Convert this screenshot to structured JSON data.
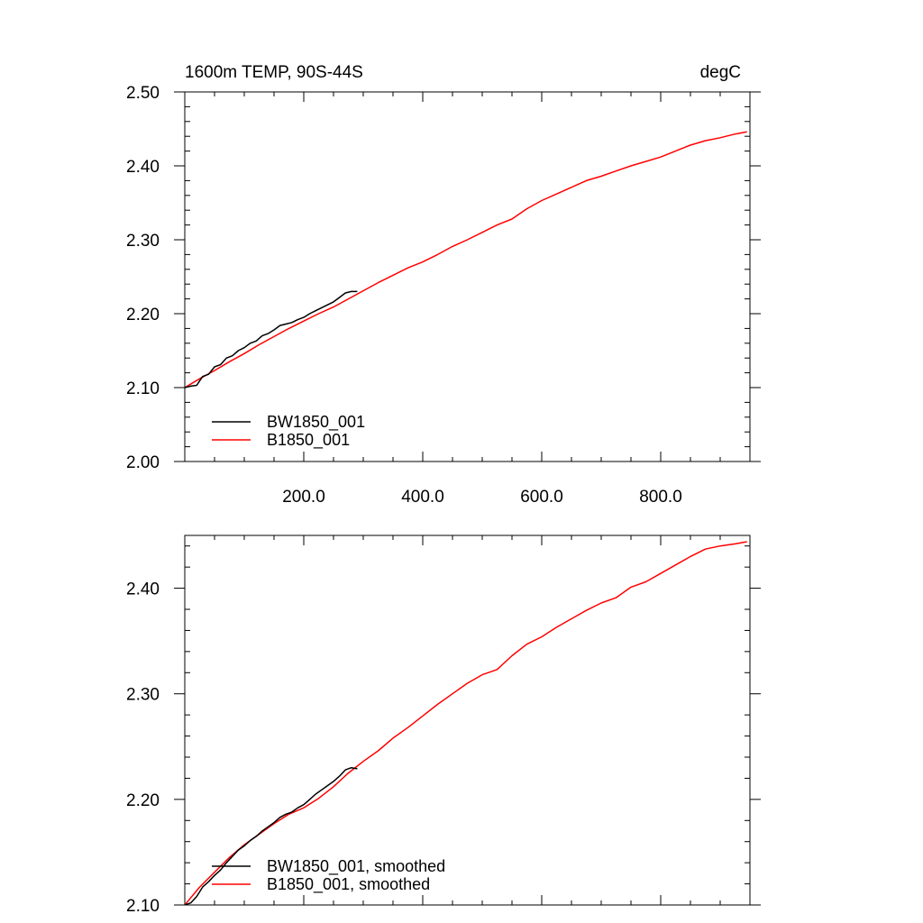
{
  "chart_data": [
    {
      "type": "line",
      "title": "1600m TEMP, 90S-44S",
      "units": "degC",
      "xlim": [
        0,
        950
      ],
      "ylim": [
        2.0,
        2.5
      ],
      "x_ticks": [
        200,
        400,
        600,
        800
      ],
      "x_tick_labels": [
        "200.0",
        "400.0",
        "600.0",
        "800.0"
      ],
      "y_ticks": [
        2.0,
        2.1,
        2.2,
        2.3,
        2.4,
        2.5
      ],
      "y_tick_labels": [
        "2.00",
        "2.10",
        "2.20",
        "2.30",
        "2.40",
        "2.50"
      ],
      "legend_location": "lower-left",
      "grid": false,
      "series": [
        {
          "name": "BW1850_001",
          "color": "#000000",
          "x": [
            0,
            10,
            20,
            30,
            40,
            50,
            60,
            70,
            80,
            90,
            100,
            110,
            120,
            130,
            140,
            150,
            160,
            170,
            180,
            190,
            200,
            210,
            220,
            230,
            240,
            250,
            260,
            270,
            280,
            290
          ],
          "y": [
            2.1,
            2.102,
            2.103,
            2.115,
            2.118,
            2.128,
            2.131,
            2.14,
            2.143,
            2.15,
            2.154,
            2.16,
            2.163,
            2.17,
            2.173,
            2.178,
            2.184,
            2.186,
            2.188,
            2.192,
            2.195,
            2.2,
            2.204,
            2.208,
            2.212,
            2.216,
            2.222,
            2.228,
            2.23,
            2.23
          ]
        },
        {
          "name": "B1850_001",
          "color": "#ff0000",
          "x": [
            0,
            25,
            50,
            75,
            100,
            125,
            150,
            175,
            200,
            225,
            250,
            275,
            300,
            325,
            350,
            375,
            400,
            425,
            450,
            475,
            500,
            525,
            550,
            575,
            600,
            625,
            650,
            675,
            700,
            725,
            750,
            775,
            800,
            825,
            850,
            875,
            900,
            925,
            945
          ],
          "y": [
            2.1,
            2.112,
            2.123,
            2.135,
            2.146,
            2.158,
            2.169,
            2.18,
            2.19,
            2.2,
            2.209,
            2.22,
            2.231,
            2.242,
            2.252,
            2.262,
            2.27,
            2.28,
            2.291,
            2.3,
            2.31,
            2.32,
            2.328,
            2.342,
            2.353,
            2.362,
            2.371,
            2.38,
            2.386,
            2.393,
            2.4,
            2.406,
            2.412,
            2.42,
            2.428,
            2.434,
            2.438,
            2.443,
            2.446
          ]
        }
      ]
    },
    {
      "type": "line",
      "xlim": [
        0,
        950
      ],
      "ylim": [
        2.1,
        2.45
      ],
      "x_ticks": [
        200,
        400,
        600,
        800
      ],
      "y_ticks": [
        2.1,
        2.2,
        2.3,
        2.4
      ],
      "y_tick_labels": [
        "2.10",
        "2.20",
        "2.30",
        "2.40"
      ],
      "legend_location": "lower-left",
      "grid": false,
      "series": [
        {
          "name": "BW1850_001, smoothed",
          "color": "#000000",
          "x": [
            0,
            10,
            20,
            30,
            40,
            50,
            60,
            70,
            80,
            90,
            100,
            110,
            120,
            130,
            140,
            150,
            160,
            170,
            180,
            190,
            200,
            210,
            220,
            230,
            240,
            250,
            260,
            270,
            280,
            290
          ],
          "y": [
            2.1,
            2.102,
            2.108,
            2.117,
            2.122,
            2.128,
            2.133,
            2.14,
            2.146,
            2.152,
            2.156,
            2.161,
            2.165,
            2.17,
            2.174,
            2.178,
            2.183,
            2.186,
            2.188,
            2.192,
            2.195,
            2.2,
            2.205,
            2.209,
            2.213,
            2.217,
            2.222,
            2.228,
            2.23,
            2.229
          ]
        },
        {
          "name": "B1850_001, smoothed",
          "color": "#ff0000",
          "x": [
            0,
            25,
            50,
            75,
            100,
            125,
            150,
            175,
            200,
            225,
            250,
            275,
            300,
            325,
            350,
            375,
            400,
            425,
            450,
            475,
            500,
            525,
            550,
            575,
            600,
            625,
            650,
            675,
            700,
            725,
            750,
            775,
            800,
            825,
            850,
            875,
            900,
            925,
            945
          ],
          "y": [
            2.1,
            2.117,
            2.131,
            2.145,
            2.157,
            2.167,
            2.177,
            2.186,
            2.192,
            2.201,
            2.212,
            2.225,
            2.236,
            2.246,
            2.258,
            2.268,
            2.279,
            2.29,
            2.3,
            2.31,
            2.318,
            2.323,
            2.336,
            2.347,
            2.354,
            2.363,
            2.371,
            2.379,
            2.386,
            2.391,
            2.401,
            2.406,
            2.414,
            2.422,
            2.43,
            2.437,
            2.44,
            2.442,
            2.444
          ]
        }
      ]
    }
  ]
}
